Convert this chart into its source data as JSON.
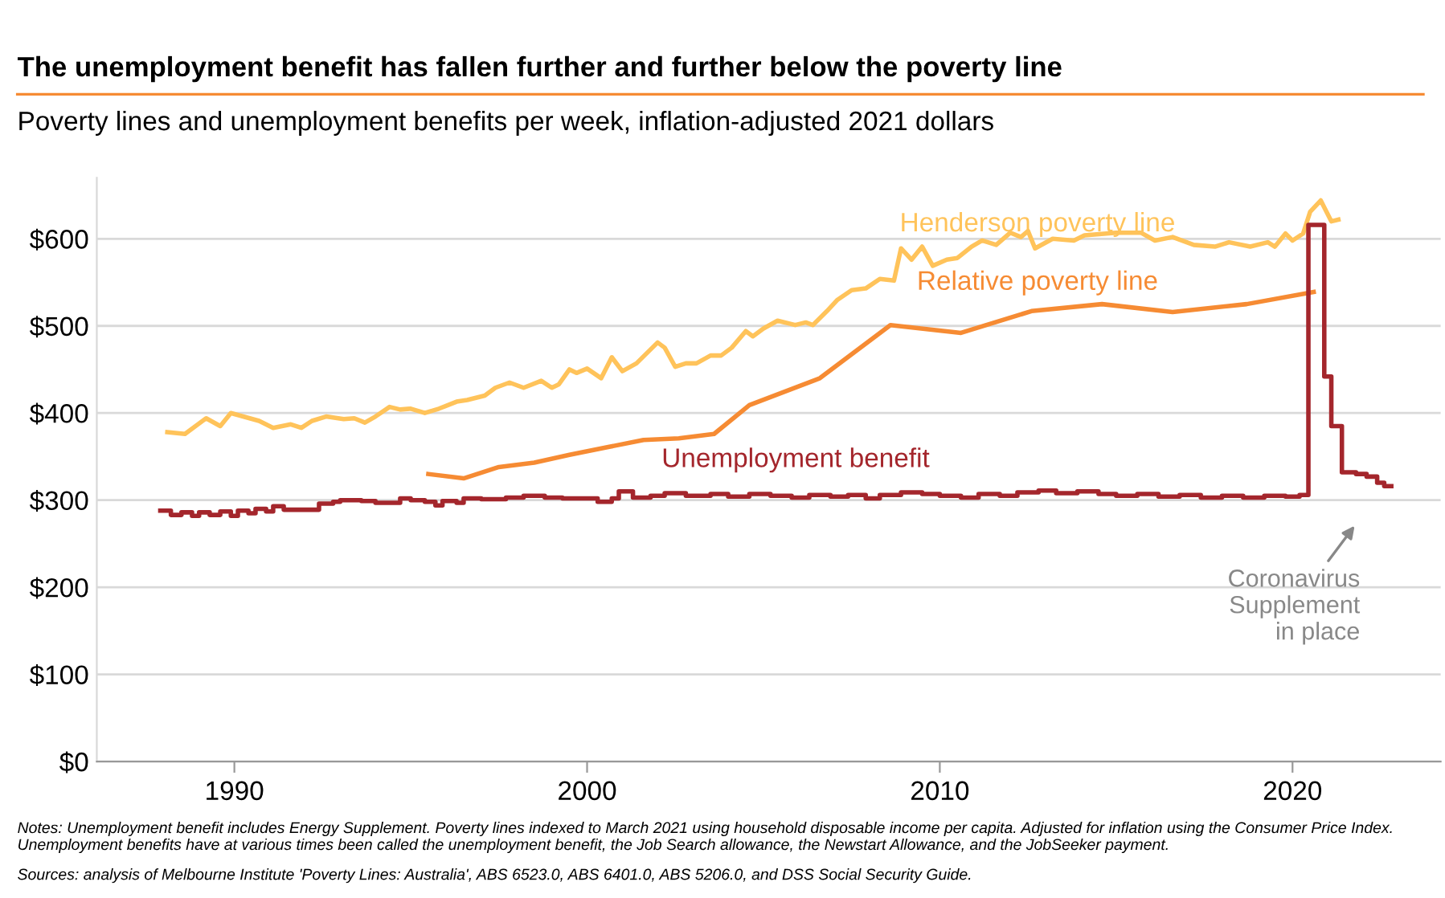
{
  "chart_data": {
    "type": "line",
    "title": "The unemployment benefit has fallen further and further below the poverty line",
    "subtitle": "Poverty lines and unemployment benefits per week, inflation-adjusted 2021 dollars",
    "series": [
      {
        "name": "Henderson poverty line",
        "color": "#ffc35a",
        "x": [
          1988.1,
          1988.6,
          1989.2,
          1989.6,
          1989.9,
          1990.7,
          1991.1,
          1991.6,
          1991.9,
          1992.2,
          1992.6,
          1993.1,
          1993.4,
          1993.7,
          1994.0,
          1994.4,
          1994.7,
          1995.0,
          1995.4,
          1995.8,
          1996.3,
          1996.6,
          1997.1,
          1997.4,
          1997.8,
          1998.2,
          1998.7,
          1999.0,
          1999.2,
          1999.5,
          1999.7,
          2000.0,
          2000.4,
          2000.7,
          2001.0,
          2001.4,
          2002.0,
          2002.2,
          2002.5,
          2002.8,
          2003.1,
          2003.5,
          2003.8,
          2004.1,
          2004.5,
          2004.7,
          2005.0,
          2005.4,
          2005.9,
          2006.2,
          2006.4,
          2006.8,
          2007.1,
          2007.5,
          2007.9,
          2008.3,
          2008.7,
          2008.9,
          2009.2,
          2009.5,
          2009.8,
          2010.2,
          2010.5,
          2010.9,
          2011.2,
          2011.6,
          2012.0,
          2012.3,
          2012.5,
          2012.7,
          2013.2,
          2013.8,
          2014.1,
          2015.0,
          2015.7,
          2016.1,
          2016.6,
          2017.2,
          2017.8,
          2018.2,
          2018.8,
          2019.3,
          2019.5,
          2019.8,
          2020.0,
          2020.3,
          2020.5,
          2020.8,
          2021.1,
          2021.3
        ],
        "values": [
          378,
          376,
          394,
          385,
          400,
          391,
          383,
          387,
          383,
          391,
          396,
          393,
          394,
          389,
          396,
          407,
          404,
          405,
          400,
          405,
          413,
          415,
          420,
          429,
          435,
          429,
          437,
          429,
          433,
          450,
          446,
          451,
          440,
          464,
          448,
          457,
          481,
          475,
          453,
          457,
          457,
          466,
          466,
          475,
          494,
          488,
          497,
          506,
          501,
          504,
          501,
          517,
          530,
          541,
          543,
          554,
          552,
          589,
          576,
          591,
          569,
          576,
          578,
          591,
          598,
          593,
          607,
          602,
          609,
          589,
          600,
          598,
          604,
          607,
          607,
          598,
          602,
          593,
          591,
          596,
          591,
          596,
          591,
          606,
          598,
          606,
          631,
          644,
          620,
          622
        ]
      },
      {
        "name": "Relative poverty line",
        "color": "#f68b33",
        "x": [
          1995.5,
          1996.5,
          1997.5,
          1998.5,
          1999.5,
          2000.6,
          2001.6,
          2002.6,
          2003.6,
          2004.6,
          2006.6,
          2008.6,
          2010.6,
          2012.6,
          2014.6,
          2016.6,
          2018.7,
          2020.6
        ],
        "values": [
          330,
          325,
          338,
          343,
          352,
          361,
          369,
          371,
          376,
          409,
          440,
          501,
          492,
          517,
          525,
          516,
          525,
          539
        ]
      },
      {
        "name": "Unemployment benefit",
        "color": "#a4262c",
        "type": "step",
        "x": [
          1987.9,
          1988.2,
          1988.5,
          1988.8,
          1989.0,
          1989.3,
          1989.6,
          1989.9,
          1990.1,
          1990.4,
          1990.6,
          1990.9,
          1991.1,
          1991.4,
          1992.2,
          1992.4,
          1992.8,
          1993.0,
          1993.6,
          1994.0,
          1994.5,
          1994.7,
          1995.0,
          1995.4,
          1995.7,
          1995.9,
          1996.3,
          1996.5,
          1997.0,
          1997.7,
          1998.2,
          1998.8,
          1999.3,
          2000.0,
          2000.3,
          2000.7,
          2000.9,
          2001.3,
          2001.8,
          2002.2,
          2002.8,
          2003.5,
          2004.0,
          2004.6,
          2005.2,
          2005.8,
          2006.3,
          2006.9,
          2007.4,
          2007.9,
          2008.3,
          2008.9,
          2009.5,
          2010.0,
          2010.6,
          2011.1,
          2011.7,
          2012.2,
          2012.8,
          2013.3,
          2013.9,
          2014.5,
          2015.0,
          2015.6,
          2016.2,
          2016.8,
          2017.4,
          2018.0,
          2018.6,
          2019.2,
          2019.8,
          2020.2,
          2020.45,
          2020.9,
          2021.1,
          2021.4,
          2021.8,
          2022.1,
          2022.4,
          2022.6,
          2022.8
        ],
        "values": [
          288,
          283,
          286,
          282,
          286,
          283,
          287,
          282,
          288,
          285,
          290,
          287,
          293,
          289,
          289,
          296,
          298,
          300,
          299,
          297,
          297,
          302,
          300,
          298,
          294,
          299,
          297,
          302,
          301,
          303,
          305,
          303,
          302,
          302,
          298,
          302,
          310,
          303,
          305,
          308,
          305,
          307,
          304,
          307,
          305,
          303,
          306,
          304,
          306,
          302,
          306,
          309,
          307,
          305,
          303,
          307,
          305,
          309,
          311,
          308,
          310,
          307,
          305,
          307,
          304,
          306,
          303,
          305,
          303,
          305,
          304,
          306,
          616,
          442,
          385,
          332,
          330,
          327,
          320,
          316,
          316
        ]
      }
    ],
    "xlim": [
      1986.1,
      2024.2
    ],
    "ylim": [
      0,
      670
    ],
    "xticks": [
      1990,
      2000,
      2010,
      2020
    ],
    "yticks": [
      {
        "value": 0,
        "label": "$0"
      },
      {
        "value": 100,
        "label": "$100"
      },
      {
        "value": 200,
        "label": "$200"
      },
      {
        "value": 300,
        "label": "$300"
      },
      {
        "value": 400,
        "label": "$400"
      },
      {
        "value": 500,
        "label": "$500"
      },
      {
        "value": 600,
        "label": "$600"
      }
    ],
    "grid": "y",
    "legend": false,
    "annotations": [
      "Coronavirus\nSupplement\nin place",
      "Notes: Unemployment benefit includes Energy Supplement. Poverty lines indexed to March 2021 using household disposable income per capita. Adjusted for inflation using the Consumer Price Index. Unemployment benefits have at various times been called the unemployment benefit, the Job Search allowance, the Newstart Allowance, and the JobSeeker payment.",
      "Sources: analysis of Melbourne Institute 'Poverty Lines: Australia', ABS 6523.0, ABS 6401.0, ABS 5206.0, and DSS Social Security Guide."
    ]
  }
}
